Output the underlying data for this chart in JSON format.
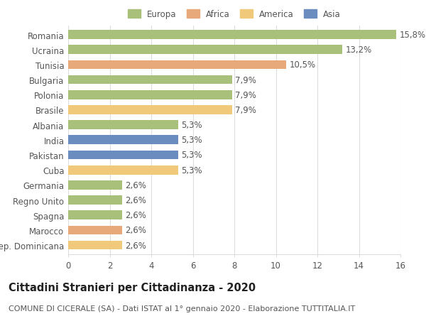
{
  "categories": [
    "Rep. Dominicana",
    "Marocco",
    "Spagna",
    "Regno Unito",
    "Germania",
    "Cuba",
    "Pakistan",
    "India",
    "Albania",
    "Brasile",
    "Polonia",
    "Bulgaria",
    "Tunisia",
    "Ucraina",
    "Romania"
  ],
  "values": [
    2.6,
    2.6,
    2.6,
    2.6,
    2.6,
    5.3,
    5.3,
    5.3,
    5.3,
    7.9,
    7.9,
    7.9,
    10.5,
    13.2,
    15.8
  ],
  "labels": [
    "2,6%",
    "2,6%",
    "2,6%",
    "2,6%",
    "2,6%",
    "5,3%",
    "5,3%",
    "5,3%",
    "5,3%",
    "7,9%",
    "7,9%",
    "7,9%",
    "10,5%",
    "13,2%",
    "15,8%"
  ],
  "colors": [
    "#f0c97a",
    "#e8a97a",
    "#a8c07a",
    "#a8c07a",
    "#a8c07a",
    "#f0c97a",
    "#6b8cbf",
    "#6b8cbf",
    "#a8c07a",
    "#f0c97a",
    "#a8c07a",
    "#a8c07a",
    "#e8a97a",
    "#a8c07a",
    "#a8c07a"
  ],
  "legend_labels": [
    "Europa",
    "Africa",
    "America",
    "Asia"
  ],
  "legend_colors": [
    "#a8c07a",
    "#e8a97a",
    "#f0c97a",
    "#6b8cbf"
  ],
  "title": "Cittadini Stranieri per Cittadinanza - 2020",
  "subtitle": "COMUNE DI CICERALE (SA) - Dati ISTAT al 1° gennaio 2020 - Elaborazione TUTTITALIA.IT",
  "xlim": [
    0,
    16
  ],
  "xticks": [
    0,
    2,
    4,
    6,
    8,
    10,
    12,
    14,
    16
  ],
  "bar_height": 0.6,
  "label_fontsize": 8.5,
  "tick_fontsize": 8.5,
  "title_fontsize": 10.5,
  "subtitle_fontsize": 8,
  "background_color": "#ffffff",
  "grid_color": "#dddddd",
  "text_color": "#555555"
}
